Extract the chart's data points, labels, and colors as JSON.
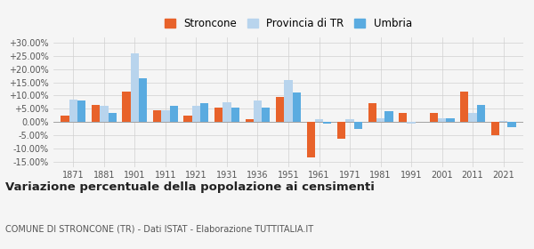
{
  "years": [
    1871,
    1881,
    1901,
    1911,
    1921,
    1931,
    1936,
    1951,
    1961,
    1971,
    1981,
    1991,
    2001,
    2011,
    2021
  ],
  "stroncone": [
    2.5,
    6.5,
    11.5,
    4.5,
    2.5,
    5.5,
    1.0,
    9.5,
    -13.5,
    -6.5,
    7.0,
    3.5,
    3.5,
    11.5,
    -5.0
  ],
  "provincia_tr": [
    8.5,
    6.0,
    26.0,
    4.5,
    6.0,
    7.5,
    8.0,
    16.0,
    1.0,
    1.0,
    1.5,
    -0.5,
    1.5,
    3.5,
    0.5
  ],
  "umbria": [
    8.0,
    3.5,
    16.5,
    6.0,
    7.0,
    5.5,
    5.5,
    11.0,
    -0.5,
    -2.5,
    4.0,
    0.0,
    1.5,
    6.5,
    -2.0
  ],
  "color_stroncone": "#e8622a",
  "color_provincia": "#b8d4ed",
  "color_umbria": "#5aabe0",
  "title": "Variazione percentuale della popolazione ai censimenti",
  "subtitle": "COMUNE DI STRONCONE (TR) - Dati ISTAT - Elaborazione TUTTITALIA.IT",
  "ylim": [
    -17,
    32
  ],
  "yticks": [
    -15,
    -10,
    -5,
    0,
    5,
    10,
    15,
    20,
    25,
    30
  ],
  "bar_width": 0.27,
  "background_color": "#f5f5f5",
  "grid_color": "#d0d0d0",
  "title_fontsize": 9.5,
  "subtitle_fontsize": 7.0,
  "tick_fontsize": 7.0,
  "legend_fontsize": 8.5
}
